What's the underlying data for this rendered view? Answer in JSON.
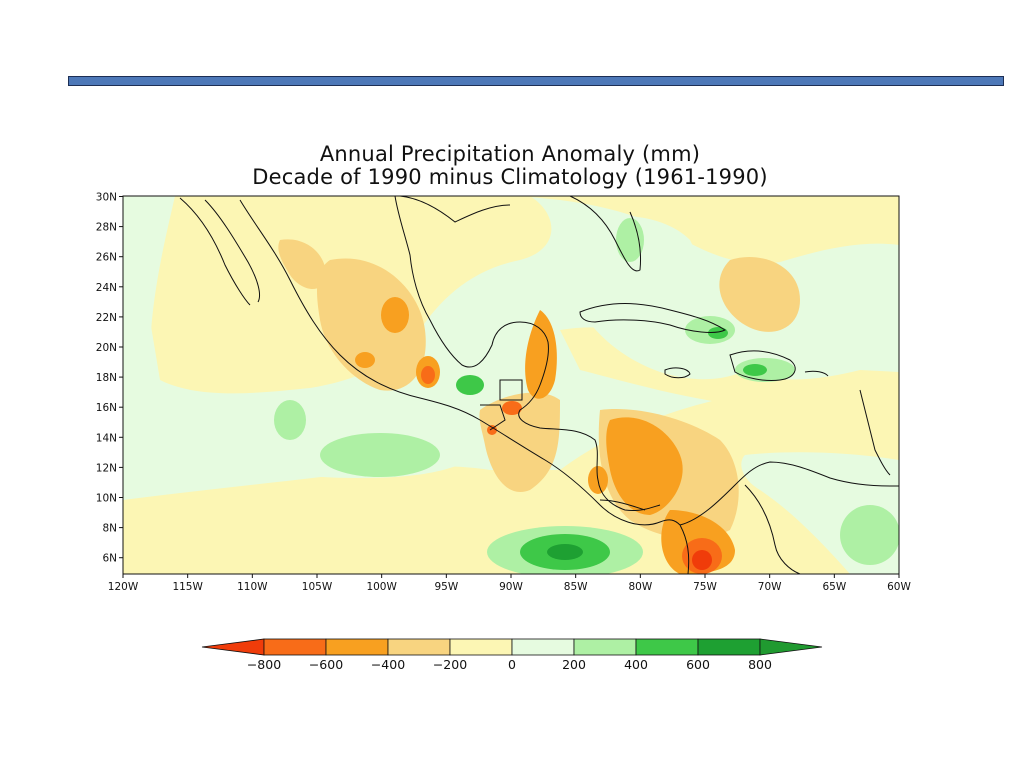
{
  "title": {
    "line1": "Annual Precipitation Anomaly (mm)",
    "line2": "Decade of 1990 minus Climatology (1961-1990)"
  },
  "map": {
    "lat_labels": [
      "30N",
      "28N",
      "26N",
      "24N",
      "22N",
      "20N",
      "18N",
      "16N",
      "14N",
      "12N",
      "10N",
      "8N",
      "6N"
    ],
    "lon_labels": [
      "120W",
      "115W",
      "110W",
      "105W",
      "100W",
      "95W",
      "90W",
      "85W",
      "80W",
      "75W",
      "70W",
      "65W",
      "60W"
    ]
  },
  "colorbar": {
    "labels": [
      "−800",
      "−600",
      "−400",
      "−200",
      "0",
      "200",
      "400",
      "600",
      "800"
    ],
    "colors": [
      "#f03c0a",
      "#f86c18",
      "#f8a020",
      "#f8d480",
      "#fcf6b4",
      "#e6fbe0",
      "#aef0a4",
      "#3ec848",
      "#1ea032",
      "#209a30"
    ]
  }
}
